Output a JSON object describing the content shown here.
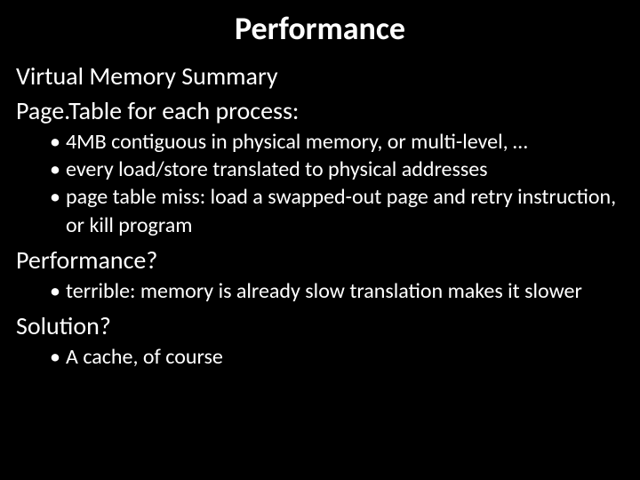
{
  "title": "Performance",
  "sections": [
    {
      "heading": "Virtual Memory Summary",
      "bullets": []
    },
    {
      "heading": "Page.Table for each process:",
      "bullets": [
        "4MB contiguous in physical memory, or multi-level, …",
        "every load/store translated to physical addresses",
        "page table miss: load a swapped-out page and retry instruction, or kill program"
      ]
    },
    {
      "heading": "Performance?",
      "bullets": [
        "terrible: memory is already slow translation makes it slower"
      ]
    },
    {
      "heading": "Solution?",
      "bullets": [
        "A cache, of course"
      ]
    }
  ],
  "colors": {
    "background": "#000000",
    "text": "#ffffff"
  },
  "typography": {
    "title_fontsize": 36,
    "heading_fontsize": 28,
    "bullet_fontsize": 24,
    "font_family": "Calibri"
  }
}
